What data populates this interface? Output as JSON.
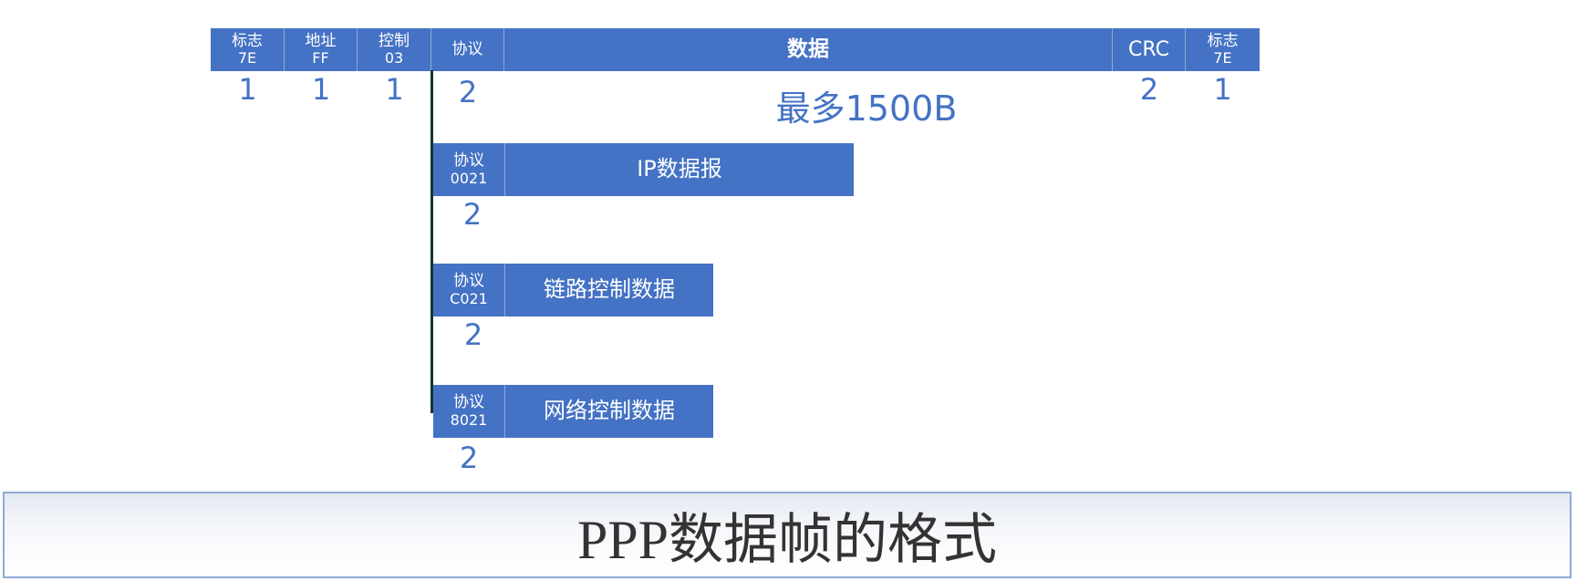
{
  "frame": {
    "fields": [
      {
        "name": "标志",
        "value": "7E",
        "size": "1"
      },
      {
        "name": "地址",
        "value": "FF",
        "size": "1"
      },
      {
        "name": "控制",
        "value": "03",
        "size": "1"
      },
      {
        "name": "协议",
        "value": "",
        "size": "2"
      },
      {
        "name": "数据",
        "value": "",
        "size": "最多1500B"
      },
      {
        "name": "CRC",
        "value": "",
        "size": "2"
      },
      {
        "name": "标志",
        "value": "7E",
        "size": "1"
      }
    ]
  },
  "variants": [
    {
      "proto_name": "协议",
      "proto_code": "0021",
      "payload": "IP数据报",
      "size": "2"
    },
    {
      "proto_name": "协议",
      "proto_code": "C021",
      "payload": "链路控制数据",
      "size": "2"
    },
    {
      "proto_name": "协议",
      "proto_code": "8021",
      "payload": "网络控制数据",
      "size": "2"
    }
  ],
  "caption": "PPP数据帧的格式",
  "colors": {
    "field_fill": "#4472c4",
    "number_text": "#4472c4",
    "connector": "#17353a",
    "caption_border": "#8eaad6"
  }
}
